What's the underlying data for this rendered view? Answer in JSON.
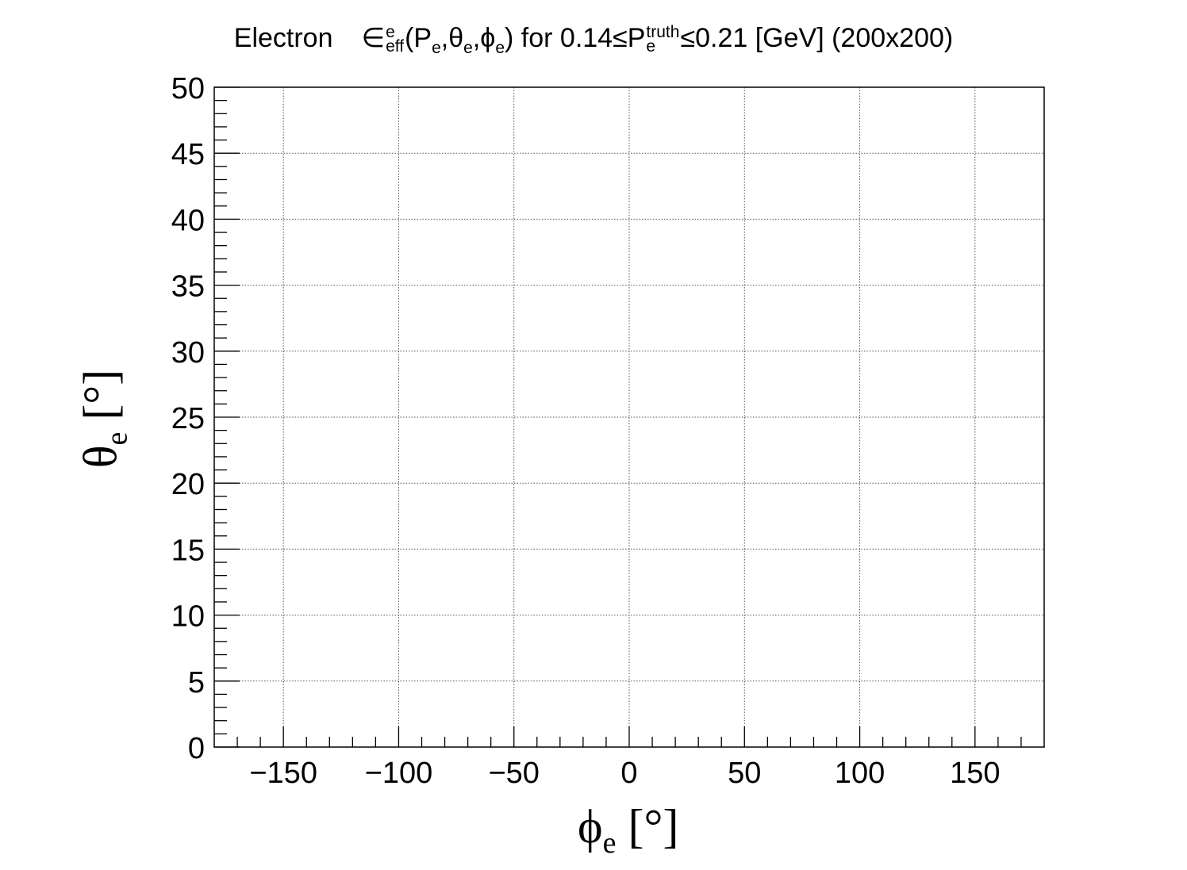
{
  "title": {
    "prefix": "Electron",
    "eff_symbol": "∈",
    "eff_sup": "e",
    "eff_sub": "eff",
    "args_open": "(P",
    "args_sub1": "e",
    "args_mid1": ",θ",
    "args_sub2": "e",
    "args_mid2": ",ϕ",
    "args_sub3": "e",
    "args_close": ") for 0.14≤P",
    "p_sup": "truth",
    "p_sub": "e",
    "suffix": "≤0.21 [GeV] (200x200)"
  },
  "xlabel": {
    "symbol": "ϕ",
    "sub": "e",
    "unit": " [°]"
  },
  "ylabel": {
    "symbol": "θ",
    "sub": "e",
    "unit": " [°]"
  },
  "chart_data": {
    "type": "heatmap",
    "title": "Electron ∈^e_eff(P_e,θ_e,ϕ_e) for 0.14≤P^truth_e≤0.21 [GeV] (200x200)",
    "xlabel": "ϕ_e [°]",
    "ylabel": "θ_e [°]",
    "xlim": [
      -180,
      180
    ],
    "ylim": [
      0,
      50
    ],
    "x_ticks": [
      -150,
      -100,
      -50,
      0,
      50,
      100,
      150
    ],
    "x_tick_labels": [
      "−150",
      "−100",
      "−50",
      "0",
      "50",
      "100",
      "150"
    ],
    "y_ticks": [
      0,
      5,
      10,
      15,
      20,
      25,
      30,
      35,
      40,
      45,
      50
    ],
    "y_tick_labels": [
      "0",
      "5",
      "10",
      "15",
      "20",
      "25",
      "30",
      "35",
      "40",
      "45",
      "50"
    ],
    "x_minor_step": 10,
    "y_minor_step": 1,
    "grid": true,
    "values": []
  }
}
